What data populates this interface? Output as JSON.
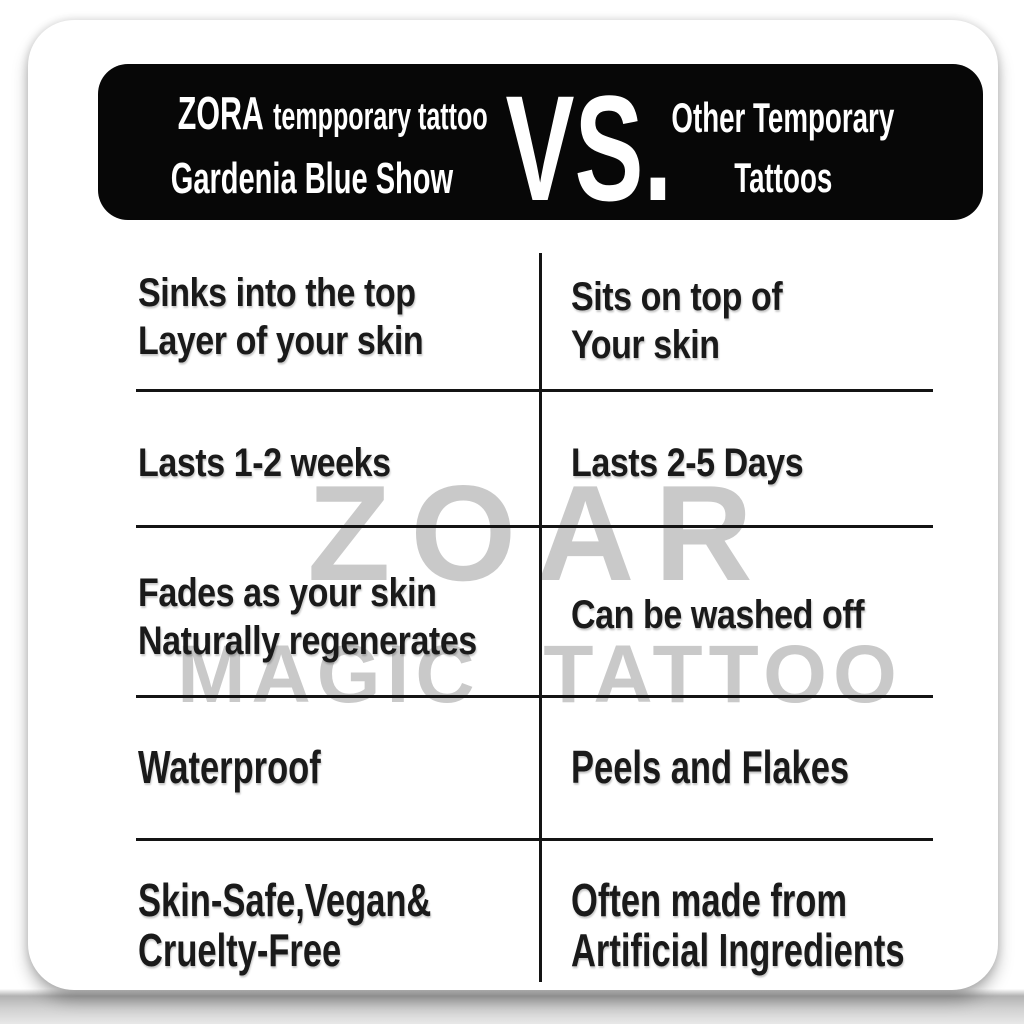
{
  "banner": {
    "bg_color": "#070707",
    "text_color": "#ffffff",
    "left": {
      "brand": "ZORA",
      "brand_suffix": "tempporary tattoo",
      "line2": "Gardenia Blue Show"
    },
    "vs": "VS.",
    "right": {
      "line1": "Other Temporary",
      "line2": "Tattoos"
    }
  },
  "watermark": {
    "line1": "ZOAR",
    "line2": "MAGIC TATTOO",
    "color": "#c9c9c9"
  },
  "chart_data": {
    "type": "table",
    "title": "ZORA tempporary tattoo Gardenia Blue Show VS. Other Temporary Tattoos",
    "columns": [
      "ZORA tempporary tattoo Gardenia Blue Show",
      "Other Temporary Tattoos"
    ],
    "rows": [
      [
        "Sinks into the top\nLayer of your skin",
        "Sits on top of\nYour skin"
      ],
      [
        "Lasts 1-2 weeks",
        "Lasts 2-5 Days"
      ],
      [
        "Fades as your skin\nNaturally regenerates",
        "Can be washed off"
      ],
      [
        "Waterproof",
        "Peels and Flakes"
      ],
      [
        "Skin-Safe,Vegan&\nCruelty-Free",
        "Often made from\nArtificial Ingredients"
      ]
    ],
    "text_color": "#1a1a1a",
    "line_color": "#141414",
    "grid": "partial: 4 horizontal rules + 1 center column divider, no outer border"
  }
}
